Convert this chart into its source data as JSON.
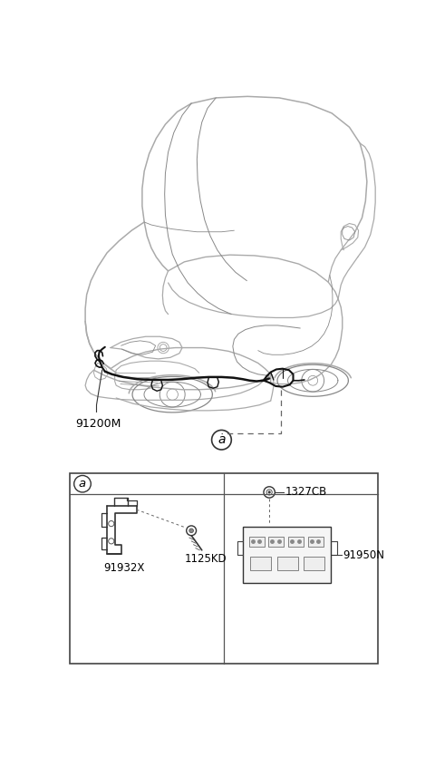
{
  "bg_color": "#ffffff",
  "car_line_color": "#aaaaaa",
  "car_line_color2": "#888888",
  "wire_color": "#111111",
  "label_color": "#000000",
  "box_color": "#444444",
  "dash_color": "#666666",
  "label_91200M": "91200M",
  "label_a": "a",
  "label_91932X": "91932X",
  "label_1125KD": "1125KD",
  "label_1327CB": "1327CB",
  "label_91950N": "91950N"
}
